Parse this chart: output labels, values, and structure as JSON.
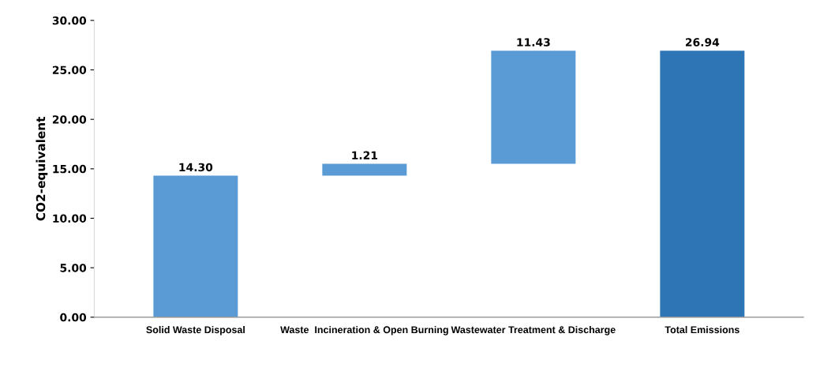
{
  "chart_data": {
    "type": "bar",
    "ylabel": "CO2-equivalent",
    "categories": [
      "Solid Waste Disposal",
      "Waste  Incineration & Open Burning",
      "Wastewater Treatment & Discharge",
      "Total Emissions"
    ],
    "values": [
      14.3,
      1.21,
      11.43,
      26.94
    ],
    "base": [
      0,
      14.3,
      15.51,
      0
    ],
    "colors": [
      "#5b9bd5",
      "#5b9bd5",
      "#5b9bd5",
      "#2e75b6"
    ],
    "value_labels": [
      "14.30",
      "1.21",
      "11.43",
      "26.94"
    ],
    "ylim": [
      0,
      30
    ],
    "yticks": [
      {
        "value": 0,
        "label": "0.00"
      },
      {
        "value": 5,
        "label": "5.00"
      },
      {
        "value": 10,
        "label": "10.00"
      },
      {
        "value": 15,
        "label": "15.00"
      },
      {
        "value": 20,
        "label": "20.00"
      },
      {
        "value": 25,
        "label": "25.00"
      },
      {
        "value": 30,
        "label": "30.00"
      }
    ],
    "grid": false,
    "legend": false
  }
}
